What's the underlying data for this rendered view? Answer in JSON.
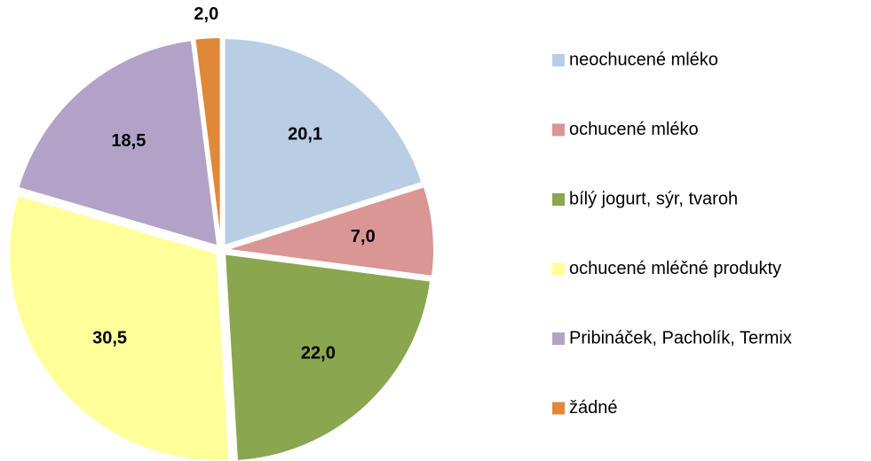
{
  "chart_data": {
    "type": "pie",
    "categories": [
      "neochucené mléko",
      "ochucené mléko",
      "bílý jogurt, sýr, tvaroh",
      "ochucené mléčné produkty",
      "Pribináček, Pacholík, Termix",
      "žádné"
    ],
    "values": [
      20.1,
      7.0,
      22.0,
      30.5,
      18.5,
      2.0
    ],
    "value_labels": [
      "20,1",
      "7,0",
      "22,0",
      "30,5",
      "18,5",
      "2,0"
    ],
    "colors": [
      "#b9cde5",
      "#d99694",
      "#8aa64e",
      "#ffff99",
      "#b3a2c7",
      "#e0883a"
    ],
    "legend": "right"
  }
}
